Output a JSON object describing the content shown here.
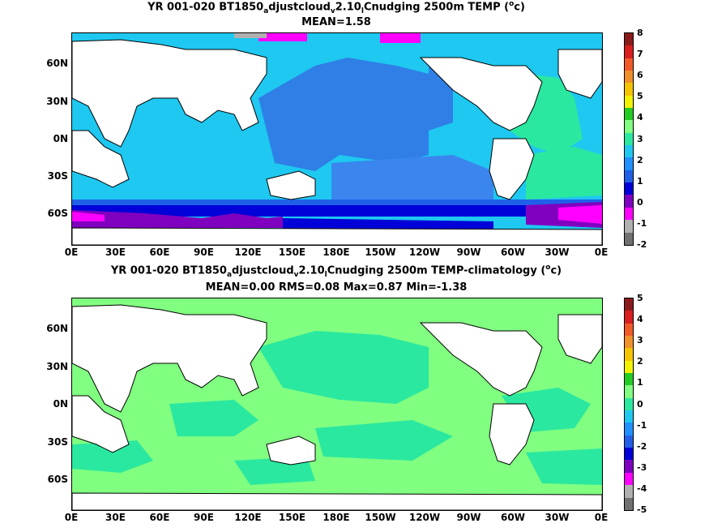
{
  "panels": [
    {
      "title_prefix": "YR 001-020 BT1850",
      "title_sub1": "a",
      "title_mid1": "djustcloud",
      "title_sub2": "v",
      "title_mid2": "2.10",
      "title_sub3": "l",
      "title_mid3": "Cnudging 2500m TEMP (",
      "title_sup": "o",
      "title_end": "c)",
      "stats": "MEAN=1.58",
      "colorbar_labels": [
        "8",
        "7",
        "6",
        "5",
        "4",
        "3",
        "2",
        "1",
        "0",
        "-1",
        "-2"
      ],
      "colorbar_colors": [
        "#8b1a1a",
        "#d81e1e",
        "#f05a28",
        "#f0902a",
        "#f5c400",
        "#f2f200",
        "#22cc22",
        "#80ff80",
        "#2ae8a0",
        "#1ec8f0",
        "#1e90ff",
        "#2060e8",
        "#0000d8",
        "#8000c0",
        "#ff00ff",
        "#b0b0b0",
        "#707070"
      ]
    },
    {
      "title_prefix": "YR 001-020 BT1850",
      "title_sub1": "a",
      "title_mid1": "djustcloud",
      "title_sub2": "v",
      "title_mid2": "2.10",
      "title_sub3": "l",
      "title_mid3": "Cnudging 2500m TEMP-climatology (",
      "title_sup": "o",
      "title_end": "c)",
      "stats": "MEAN=0.00   RMS=0.08   Max=0.87   Min=-1.38",
      "colorbar_labels": [
        "5",
        "4",
        "3",
        "2",
        "1",
        "0",
        "-1",
        "-2",
        "-3",
        "-4",
        "-5"
      ],
      "colorbar_colors": [
        "#8b1a1a",
        "#d81e1e",
        "#f05a28",
        "#f0902a",
        "#f5c400",
        "#f2f200",
        "#22cc22",
        "#80ff80",
        "#2ae8a0",
        "#1ec8f0",
        "#1e90ff",
        "#2060e8",
        "#0000d8",
        "#8000c0",
        "#ff00ff",
        "#b0b0b0",
        "#707070"
      ]
    }
  ],
  "lat_labels": [
    "60N",
    "30N",
    "0N",
    "30S",
    "60S"
  ],
  "lon_labels": [
    "0E",
    "30E",
    "60E",
    "90E",
    "120E",
    "150E",
    "180E",
    "150W",
    "120W",
    "90W",
    "60W",
    "30W",
    "0E"
  ]
}
